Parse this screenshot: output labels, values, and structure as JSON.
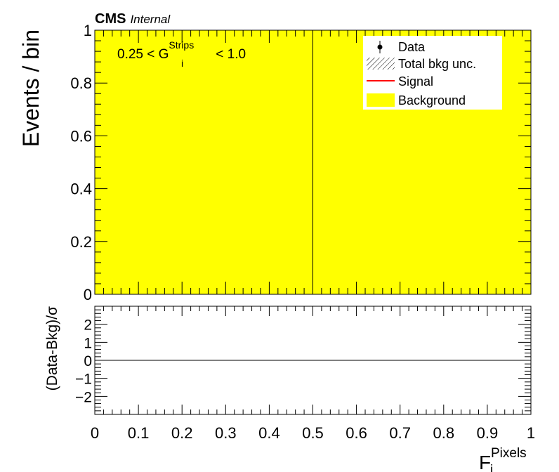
{
  "chart_data": [
    {
      "type": "bar",
      "panel": "main",
      "experiment": "CMS",
      "status": "Internal",
      "ylabel": "Events / bin",
      "region_label": {
        "prefix": "0.25 < G",
        "sup": "Strips",
        "sub": "i",
        "suffix": " < 1.0"
      },
      "xlim": [
        0,
        1
      ],
      "ylim": [
        0,
        1
      ],
      "x_ticks": [
        "0",
        "0.1",
        "0.2",
        "0.3",
        "0.4",
        "0.5",
        "0.6",
        "0.7",
        "0.8",
        "0.9",
        "1"
      ],
      "y_ticks": [
        "0",
        "0.2",
        "0.4",
        "0.6",
        "0.8",
        "1"
      ],
      "bin_edges": [
        0,
        0.5,
        1
      ],
      "series": [
        {
          "name": "Background",
          "values": [
            1,
            1
          ]
        },
        {
          "name": "Data",
          "values": [
            0,
            0
          ]
        },
        {
          "name": "Signal",
          "values": [
            0,
            0
          ]
        }
      ],
      "legend": {
        "placement": "top-right",
        "entries": [
          {
            "label": "Data",
            "style": "marker"
          },
          {
            "label": "Total bkg unc.",
            "style": "hatch"
          },
          {
            "label": "Signal",
            "style": "line"
          },
          {
            "label": "Background",
            "style": "fill"
          }
        ]
      },
      "colors": {
        "background": "#ffff00",
        "signal": "#ff0000",
        "data": "#000000"
      }
    },
    {
      "type": "scatter",
      "panel": "ratio",
      "ylabel": "(Data-Bkg)/σ",
      "xlabel": {
        "base": "F",
        "sup": "Pixels",
        "sub": "i"
      },
      "xlim": [
        0,
        1
      ],
      "ylim": [
        -3,
        3
      ],
      "y_ticks": [
        "−2",
        "−1",
        "0",
        "1",
        "2"
      ],
      "reference_line": 0,
      "values": []
    }
  ]
}
